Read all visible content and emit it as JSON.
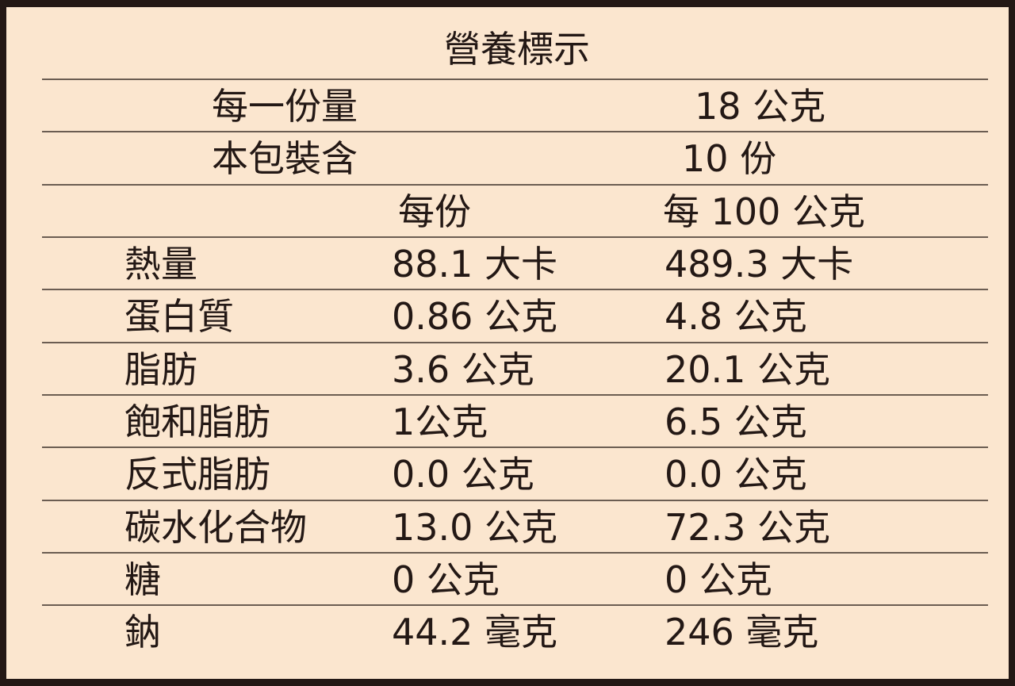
{
  "title": "營養標示",
  "serving_size": {
    "label": "每一份量",
    "value": "18 公克"
  },
  "servings_per_package": {
    "label": "本包裝含",
    "value": "10 份"
  },
  "columns": [
    "每份",
    "每 100 公克"
  ],
  "rows": [
    {
      "name": "熱量",
      "per_serving": "88.1 大卡",
      "per_100g": "489.3 大卡"
    },
    {
      "name": "蛋白質",
      "per_serving": "0.86 公克",
      "per_100g": "4.8 公克"
    },
    {
      "name": "脂肪",
      "per_serving": "3.6 公克",
      "per_100g": "20.1 公克"
    },
    {
      "name": "飽和脂肪",
      "per_serving": "1公克",
      "per_100g": "6.5 公克"
    },
    {
      "name": "反式脂肪",
      "per_serving": "0.0 公克",
      "per_100g": "0.0 公克"
    },
    {
      "name": "碳水化合物",
      "per_serving": "13.0 公克",
      "per_100g": "72.3 公克"
    },
    {
      "name": "糖",
      "per_serving": "0 公克",
      "per_100g": "0 公克"
    },
    {
      "name": "鈉",
      "per_serving": "44.2 毫克",
      "per_100g": "246 毫克"
    }
  ],
  "colors": {
    "background": "#fbe6cf",
    "border": "#231815",
    "rule": "#6b5d52",
    "text": "#231815"
  }
}
